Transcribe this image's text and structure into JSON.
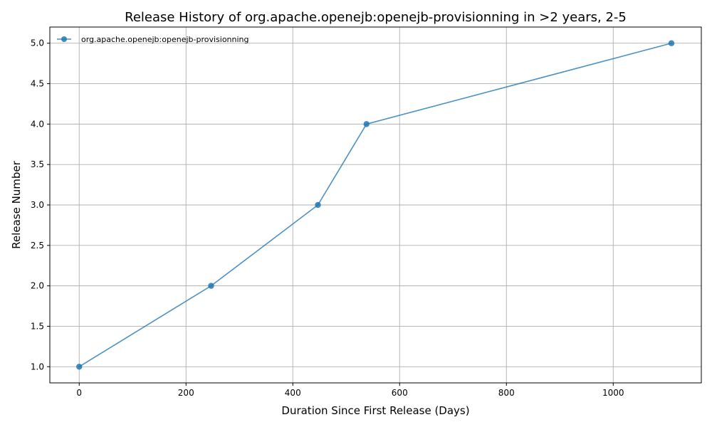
{
  "chart_data": {
    "type": "line",
    "title": "Release History of org.apache.openejb:openejb-provisionning in >2 years, 2-5",
    "xlabel": "Duration Since First Release (Days)",
    "ylabel": "Release Number",
    "xlim": [
      -55,
      1165
    ],
    "ylim": [
      0.8,
      5.2
    ],
    "xticks": [
      0,
      200,
      400,
      600,
      800,
      1000
    ],
    "yticks": [
      1.0,
      1.5,
      2.0,
      2.5,
      3.0,
      3.5,
      4.0,
      4.5,
      5.0
    ],
    "xtick_labels": [
      "0",
      "200",
      "400",
      "600",
      "800",
      "1000"
    ],
    "ytick_labels": [
      "1.0",
      "1.5",
      "2.0",
      "2.5",
      "3.0",
      "3.5",
      "4.0",
      "4.5",
      "5.0"
    ],
    "grid": true,
    "legend_position": "top-left",
    "series": [
      {
        "name": "org.apache.openejb:openejb-provisionning",
        "color": "#1f77b4",
        "x": [
          0,
          247,
          447,
          538,
          1109
        ],
        "y": [
          1,
          2,
          3,
          4,
          5
        ]
      }
    ]
  }
}
